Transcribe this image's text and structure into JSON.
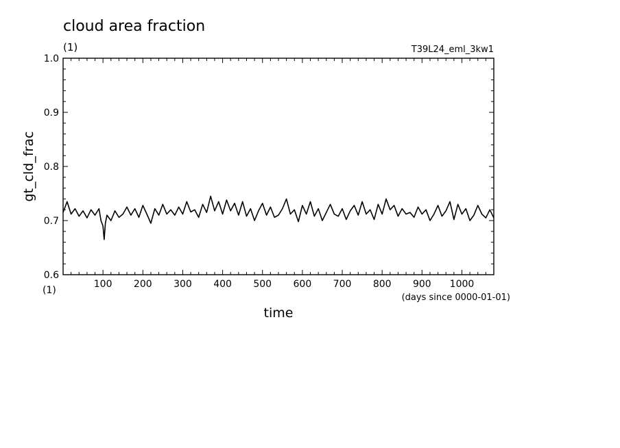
{
  "chart_data": {
    "type": "line",
    "title": "cloud area fraction",
    "title_units": "(1)",
    "run_name": "T39L24_eml_3kw1",
    "ylabel": "gt_cld_frac",
    "y_units": "(1)",
    "xlabel": "time",
    "x_units": "(days since 0000-01-01)",
    "xlim": [
      0,
      1080
    ],
    "ylim": [
      0.6,
      1.0
    ],
    "x_ticks": [
      100,
      200,
      300,
      400,
      500,
      600,
      700,
      800,
      900,
      1000
    ],
    "y_ticks": [
      "0.6",
      "0.7",
      "0.8",
      "0.9",
      "1.0"
    ],
    "grid": false,
    "line_color": "#000000",
    "series": [
      {
        "x": [
          0,
          10,
          20,
          30,
          40,
          50,
          60,
          70,
          80,
          90,
          95,
          100,
          103,
          106,
          110,
          120,
          130,
          140,
          150,
          160,
          170,
          180,
          190,
          200,
          210,
          220,
          230,
          240,
          250,
          260,
          270,
          280,
          290,
          300,
          310,
          320,
          330,
          340,
          350,
          360,
          370,
          380,
          390,
          400,
          410,
          420,
          430,
          440,
          450,
          460,
          470,
          480,
          490,
          500,
          510,
          520,
          530,
          540,
          550,
          560,
          570,
          580,
          590,
          600,
          610,
          620,
          630,
          640,
          650,
          660,
          670,
          680,
          690,
          700,
          710,
          720,
          730,
          740,
          750,
          760,
          770,
          780,
          790,
          800,
          810,
          820,
          830,
          840,
          850,
          860,
          870,
          880,
          890,
          900,
          910,
          920,
          930,
          940,
          950,
          960,
          970,
          980,
          990,
          1000,
          1010,
          1020,
          1030,
          1040,
          1050,
          1060,
          1070,
          1080
        ],
        "y": [
          0.715,
          0.735,
          0.712,
          0.722,
          0.708,
          0.718,
          0.705,
          0.72,
          0.71,
          0.722,
          0.7,
          0.69,
          0.665,
          0.695,
          0.71,
          0.7,
          0.718,
          0.706,
          0.712,
          0.725,
          0.71,
          0.722,
          0.706,
          0.728,
          0.712,
          0.695,
          0.722,
          0.71,
          0.73,
          0.712,
          0.72,
          0.71,
          0.725,
          0.712,
          0.735,
          0.716,
          0.72,
          0.706,
          0.73,
          0.715,
          0.745,
          0.718,
          0.735,
          0.712,
          0.738,
          0.718,
          0.732,
          0.71,
          0.735,
          0.708,
          0.722,
          0.7,
          0.718,
          0.732,
          0.71,
          0.725,
          0.706,
          0.71,
          0.722,
          0.74,
          0.712,
          0.72,
          0.698,
          0.728,
          0.712,
          0.735,
          0.708,
          0.722,
          0.7,
          0.715,
          0.73,
          0.712,
          0.708,
          0.722,
          0.702,
          0.718,
          0.728,
          0.71,
          0.735,
          0.712,
          0.72,
          0.702,
          0.73,
          0.712,
          0.74,
          0.72,
          0.728,
          0.708,
          0.722,
          0.712,
          0.715,
          0.706,
          0.725,
          0.712,
          0.72,
          0.7,
          0.712,
          0.728,
          0.708,
          0.718,
          0.735,
          0.702,
          0.73,
          0.712,
          0.722,
          0.7,
          0.71,
          0.728,
          0.712,
          0.705,
          0.72,
          0.705
        ]
      }
    ]
  }
}
